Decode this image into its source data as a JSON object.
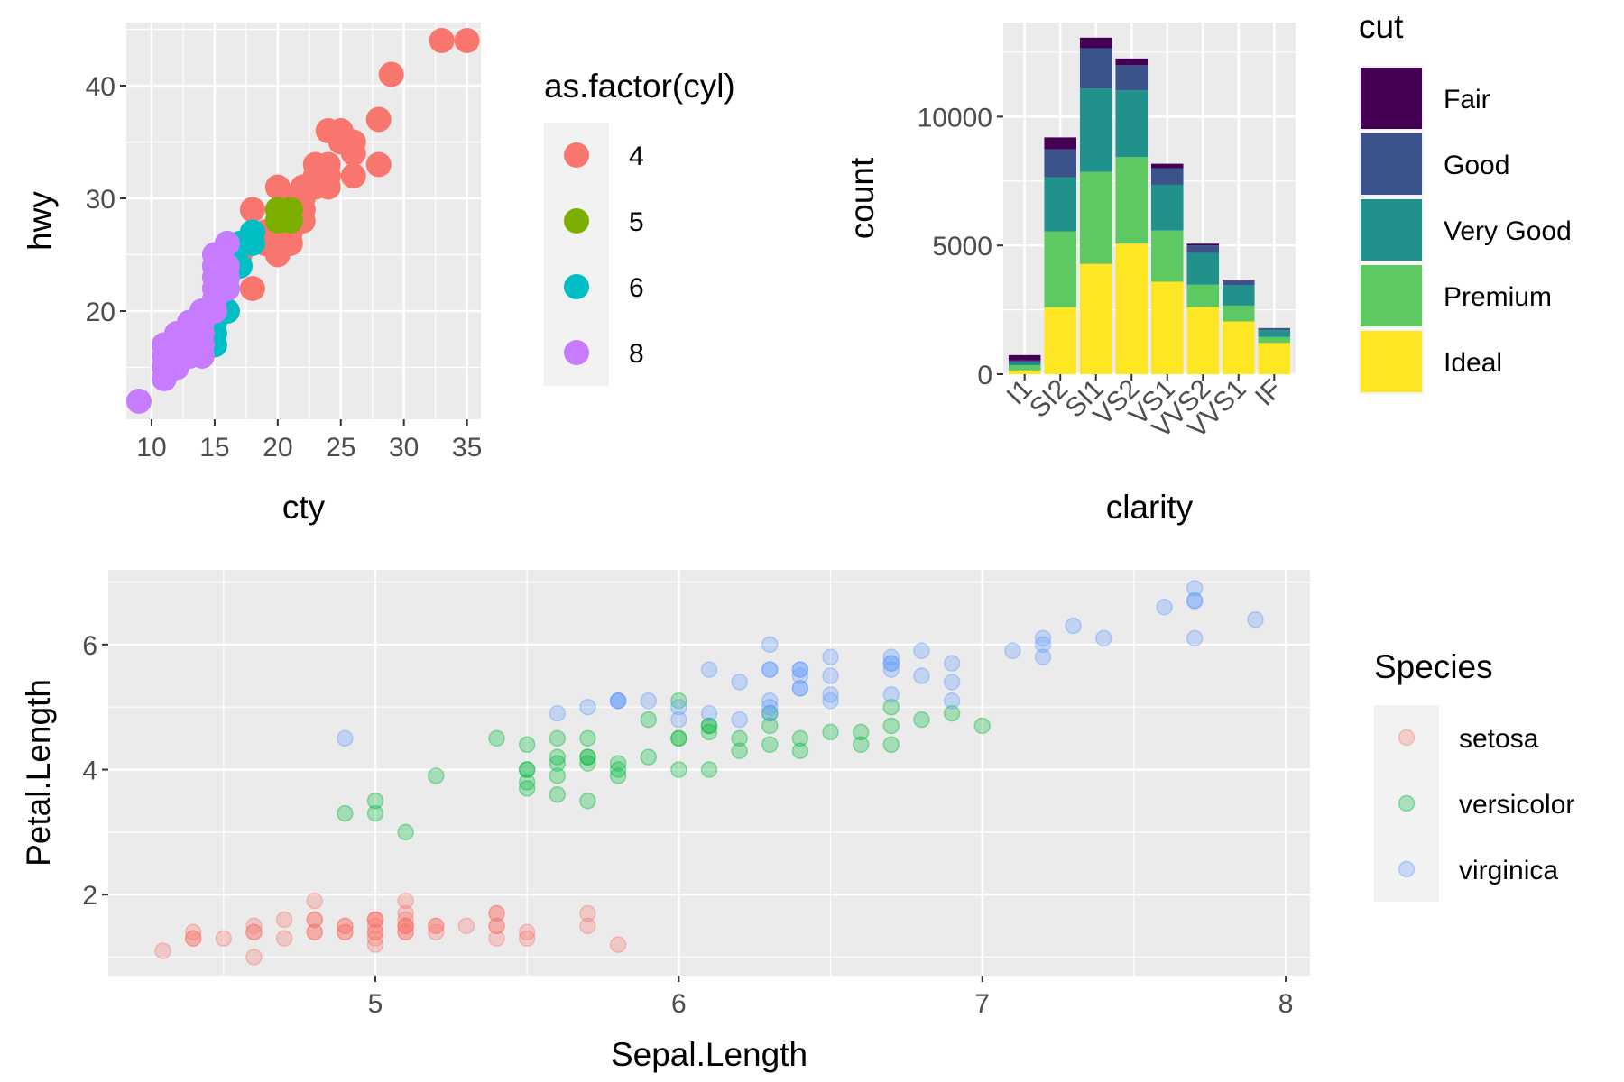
{
  "chart_data": [
    {
      "id": "mpg",
      "type": "scatter",
      "xlabel": "cty",
      "ylabel": "hwy",
      "xlim": [
        8.0,
        36.1
      ],
      "ylim": [
        10.4,
        45.6
      ],
      "xticks": [
        10,
        15,
        20,
        25,
        30,
        35
      ],
      "yticks": [
        20,
        30,
        40
      ],
      "legend": {
        "title": "as.factor(cyl)",
        "placement": "right"
      },
      "series": [
        {
          "name": "4",
          "color": "#F8766D",
          "points": [
            [
              18,
              29
            ],
            [
              21,
              29
            ],
            [
              20,
              31
            ],
            [
              21,
              30
            ],
            [
              18,
              26
            ],
            [
              18,
              29
            ],
            [
              21,
              29
            ],
            [
              19,
              27
            ],
            [
              19,
              26
            ],
            [
              21,
              30
            ],
            [
              21,
              29
            ],
            [
              22,
              29
            ],
            [
              22,
              31
            ],
            [
              24,
              32
            ],
            [
              24,
              32
            ],
            [
              23,
              33
            ],
            [
              19,
              26
            ],
            [
              21,
              26
            ],
            [
              35,
              44
            ],
            [
              33,
              44
            ],
            [
              29,
              41
            ],
            [
              21,
              29
            ],
            [
              24,
              36
            ],
            [
              28,
              37
            ],
            [
              26,
              35
            ],
            [
              25,
              36
            ],
            [
              24,
              33
            ],
            [
              26,
              34
            ],
            [
              28,
              33
            ],
            [
              25,
              35
            ],
            [
              20,
              28
            ],
            [
              19,
              27
            ],
            [
              22,
              30
            ],
            [
              23,
              32
            ],
            [
              22,
              31
            ],
            [
              20,
              27
            ],
            [
              21,
              28
            ],
            [
              23,
              31
            ],
            [
              24,
              31
            ],
            [
              26,
              32
            ],
            [
              18,
              22
            ],
            [
              17,
              25
            ],
            [
              20,
              25
            ],
            [
              16,
              20
            ],
            [
              21,
              27
            ],
            [
              22,
              30
            ],
            [
              22,
              28
            ],
            [
              22,
              29
            ]
          ]
        },
        {
          "name": "5",
          "color": "#7CAE00",
          "points": [
            [
              20,
              28
            ],
            [
              21,
              29
            ],
            [
              20,
              29
            ],
            [
              21,
              28
            ]
          ]
        },
        {
          "name": "6",
          "color": "#00BFC4",
          "points": [
            [
              16,
              26
            ],
            [
              18,
              27
            ],
            [
              17,
              26
            ],
            [
              16,
              25
            ],
            [
              17,
              24
            ],
            [
              15,
              17
            ],
            [
              15,
              20
            ],
            [
              16,
              20
            ],
            [
              14,
              20
            ],
            [
              17,
              24
            ],
            [
              16,
              22
            ],
            [
              18,
              27
            ],
            [
              16,
              23
            ],
            [
              15,
              19
            ],
            [
              15,
              18
            ],
            [
              17,
              26
            ],
            [
              18,
              26
            ],
            [
              16,
              23
            ],
            [
              15,
              21
            ]
          ]
        },
        {
          "name": "8",
          "color": "#C77CFF",
          "points": [
            [
              9,
              12
            ],
            [
              11,
              14
            ],
            [
              11,
              15
            ],
            [
              11,
              16
            ],
            [
              11,
              17
            ],
            [
              12,
              16
            ],
            [
              12,
              17
            ],
            [
              12,
              18
            ],
            [
              13,
              17
            ],
            [
              13,
              18
            ],
            [
              13,
              19
            ],
            [
              14,
              16
            ],
            [
              14,
              17
            ],
            [
              14,
              18
            ],
            [
              14,
              19
            ],
            [
              15,
              20
            ],
            [
              15,
              21
            ],
            [
              15,
              22
            ],
            [
              15,
              23
            ],
            [
              15,
              24
            ],
            [
              15,
              25
            ],
            [
              16,
              22
            ],
            [
              16,
              23
            ],
            [
              16,
              24
            ],
            [
              16,
              26
            ],
            [
              13,
              16
            ],
            [
              14,
              20
            ],
            [
              12,
              15
            ],
            [
              13,
              16
            ],
            [
              14,
              17
            ]
          ]
        }
      ]
    },
    {
      "id": "diamonds",
      "type": "bar",
      "stacked": true,
      "xlabel": "clarity",
      "ylabel": "count",
      "ylim": [
        0,
        13654
      ],
      "yticks": [
        0,
        5000,
        10000
      ],
      "ytick_labels": [
        "0",
        "5000",
        "10000"
      ],
      "categories": [
        "I1",
        "SI2",
        "SI1",
        "VS2",
        "VS1",
        "VVS2",
        "VVS1",
        "IF"
      ],
      "legend": {
        "title": "cut",
        "placement": "right"
      },
      "series": [
        {
          "name": "Ideal",
          "color": "#FDE725",
          "values": [
            146,
            2598,
            4282,
            5071,
            3589,
            2606,
            2047,
            1212
          ]
        },
        {
          "name": "Premium",
          "color": "#5EC962",
          "values": [
            205,
            2949,
            3575,
            3357,
            1989,
            870,
            616,
            230
          ]
        },
        {
          "name": "Very Good",
          "color": "#21918C",
          "values": [
            84,
            2100,
            3240,
            2591,
            1775,
            1235,
            789,
            268
          ]
        },
        {
          "name": "Good",
          "color": "#3B528B",
          "values": [
            96,
            1081,
            1560,
            978,
            648,
            286,
            186,
            71
          ]
        },
        {
          "name": "Fair",
          "color": "#440154",
          "values": [
            210,
            466,
            408,
            261,
            170,
            69,
            17,
            9
          ]
        }
      ]
    },
    {
      "id": "iris",
      "type": "scatter",
      "xlabel": "Sepal.Length",
      "ylabel": "Petal.Length",
      "xlim": [
        4.12,
        8.08
      ],
      "ylim": [
        0.705,
        7.195
      ],
      "xticks": [
        5,
        6,
        7,
        8
      ],
      "yticks": [
        2,
        4,
        6
      ],
      "point_alpha": 0.3,
      "legend": {
        "title": "Species",
        "placement": "right"
      },
      "series": [
        {
          "name": "setosa",
          "color": "#F8766D",
          "points": [
            [
              5.1,
              1.4
            ],
            [
              4.9,
              1.4
            ],
            [
              4.7,
              1.3
            ],
            [
              4.6,
              1.5
            ],
            [
              5.0,
              1.4
            ],
            [
              5.4,
              1.7
            ],
            [
              4.6,
              1.4
            ],
            [
              5.0,
              1.5
            ],
            [
              4.4,
              1.4
            ],
            [
              4.9,
              1.5
            ],
            [
              5.4,
              1.5
            ],
            [
              4.8,
              1.6
            ],
            [
              4.8,
              1.4
            ],
            [
              4.3,
              1.1
            ],
            [
              5.8,
              1.2
            ],
            [
              5.7,
              1.5
            ],
            [
              5.4,
              1.3
            ],
            [
              5.1,
              1.4
            ],
            [
              5.7,
              1.7
            ],
            [
              5.1,
              1.5
            ],
            [
              5.4,
              1.7
            ],
            [
              5.1,
              1.5
            ],
            [
              4.6,
              1.0
            ],
            [
              5.1,
              1.7
            ],
            [
              4.8,
              1.9
            ],
            [
              5.0,
              1.6
            ],
            [
              5.0,
              1.6
            ],
            [
              5.2,
              1.5
            ],
            [
              5.2,
              1.4
            ],
            [
              4.7,
              1.6
            ],
            [
              4.8,
              1.6
            ],
            [
              5.4,
              1.5
            ],
            [
              5.2,
              1.5
            ],
            [
              5.5,
              1.4
            ],
            [
              4.9,
              1.5
            ],
            [
              5.0,
              1.2
            ],
            [
              5.5,
              1.3
            ],
            [
              4.9,
              1.4
            ],
            [
              4.4,
              1.3
            ],
            [
              5.1,
              1.5
            ],
            [
              5.0,
              1.3
            ],
            [
              4.5,
              1.3
            ],
            [
              4.4,
              1.3
            ],
            [
              5.0,
              1.6
            ],
            [
              5.1,
              1.9
            ],
            [
              4.8,
              1.4
            ],
            [
              5.1,
              1.6
            ],
            [
              4.6,
              1.4
            ],
            [
              5.3,
              1.5
            ],
            [
              5.0,
              1.4
            ]
          ]
        },
        {
          "name": "versicolor",
          "color": "#00BA38",
          "points": [
            [
              7.0,
              4.7
            ],
            [
              6.4,
              4.5
            ],
            [
              6.9,
              4.9
            ],
            [
              5.5,
              4.0
            ],
            [
              6.5,
              4.6
            ],
            [
              5.7,
              4.5
            ],
            [
              6.3,
              4.7
            ],
            [
              4.9,
              3.3
            ],
            [
              6.6,
              4.6
            ],
            [
              5.2,
              3.9
            ],
            [
              5.0,
              3.5
            ],
            [
              5.9,
              4.2
            ],
            [
              6.0,
              4.0
            ],
            [
              6.1,
              4.7
            ],
            [
              5.6,
              3.6
            ],
            [
              6.7,
              4.4
            ],
            [
              5.6,
              4.5
            ],
            [
              5.8,
              4.1
            ],
            [
              6.2,
              4.5
            ],
            [
              5.6,
              3.9
            ],
            [
              5.9,
              4.8
            ],
            [
              6.1,
              4.0
            ],
            [
              6.3,
              4.9
            ],
            [
              6.1,
              4.7
            ],
            [
              6.4,
              4.3
            ],
            [
              6.6,
              4.4
            ],
            [
              6.8,
              4.8
            ],
            [
              6.7,
              5.0
            ],
            [
              6.0,
              4.5
            ],
            [
              5.7,
              3.5
            ],
            [
              5.5,
              3.8
            ],
            [
              5.5,
              3.7
            ],
            [
              5.8,
              3.9
            ],
            [
              6.0,
              5.1
            ],
            [
              5.4,
              4.5
            ],
            [
              6.0,
              4.5
            ],
            [
              6.7,
              4.7
            ],
            [
              6.3,
              4.4
            ],
            [
              5.6,
              4.1
            ],
            [
              5.5,
              4.0
            ],
            [
              5.5,
              4.4
            ],
            [
              6.1,
              4.6
            ],
            [
              5.8,
              4.0
            ],
            [
              5.0,
              3.3
            ],
            [
              5.6,
              4.2
            ],
            [
              5.7,
              4.2
            ],
            [
              5.7,
              4.2
            ],
            [
              6.2,
              4.3
            ],
            [
              5.1,
              3.0
            ],
            [
              5.7,
              4.1
            ]
          ]
        },
        {
          "name": "virginica",
          "color": "#619CFF",
          "points": [
            [
              6.3,
              6.0
            ],
            [
              5.8,
              5.1
            ],
            [
              7.1,
              5.9
            ],
            [
              6.3,
              5.6
            ],
            [
              6.5,
              5.8
            ],
            [
              7.6,
              6.6
            ],
            [
              4.9,
              4.5
            ],
            [
              7.3,
              6.3
            ],
            [
              6.7,
              5.8
            ],
            [
              7.2,
              6.1
            ],
            [
              6.5,
              5.1
            ],
            [
              6.4,
              5.3
            ],
            [
              6.8,
              5.5
            ],
            [
              5.7,
              5.0
            ],
            [
              5.8,
              5.1
            ],
            [
              6.4,
              5.3
            ],
            [
              6.5,
              5.5
            ],
            [
              7.7,
              6.7
            ],
            [
              7.7,
              6.9
            ],
            [
              6.0,
              5.0
            ],
            [
              6.9,
              5.7
            ],
            [
              5.6,
              4.9
            ],
            [
              7.7,
              6.7
            ],
            [
              6.3,
              4.9
            ],
            [
              6.7,
              5.7
            ],
            [
              7.2,
              6.0
            ],
            [
              6.2,
              4.8
            ],
            [
              6.1,
              4.9
            ],
            [
              6.4,
              5.6
            ],
            [
              7.2,
              5.8
            ],
            [
              7.4,
              6.1
            ],
            [
              7.9,
              6.4
            ],
            [
              6.4,
              5.6
            ],
            [
              6.3,
              5.1
            ],
            [
              6.1,
              5.6
            ],
            [
              7.7,
              6.1
            ],
            [
              6.3,
              5.6
            ],
            [
              6.4,
              5.5
            ],
            [
              6.0,
              4.8
            ],
            [
              6.9,
              5.4
            ],
            [
              6.7,
              5.6
            ],
            [
              6.9,
              5.1
            ],
            [
              5.8,
              5.1
            ],
            [
              6.8,
              5.9
            ],
            [
              6.7,
              5.7
            ],
            [
              6.7,
              5.2
            ],
            [
              6.3,
              5.0
            ],
            [
              6.5,
              5.2
            ],
            [
              6.2,
              5.4
            ],
            [
              5.9,
              5.1
            ]
          ]
        }
      ]
    }
  ]
}
